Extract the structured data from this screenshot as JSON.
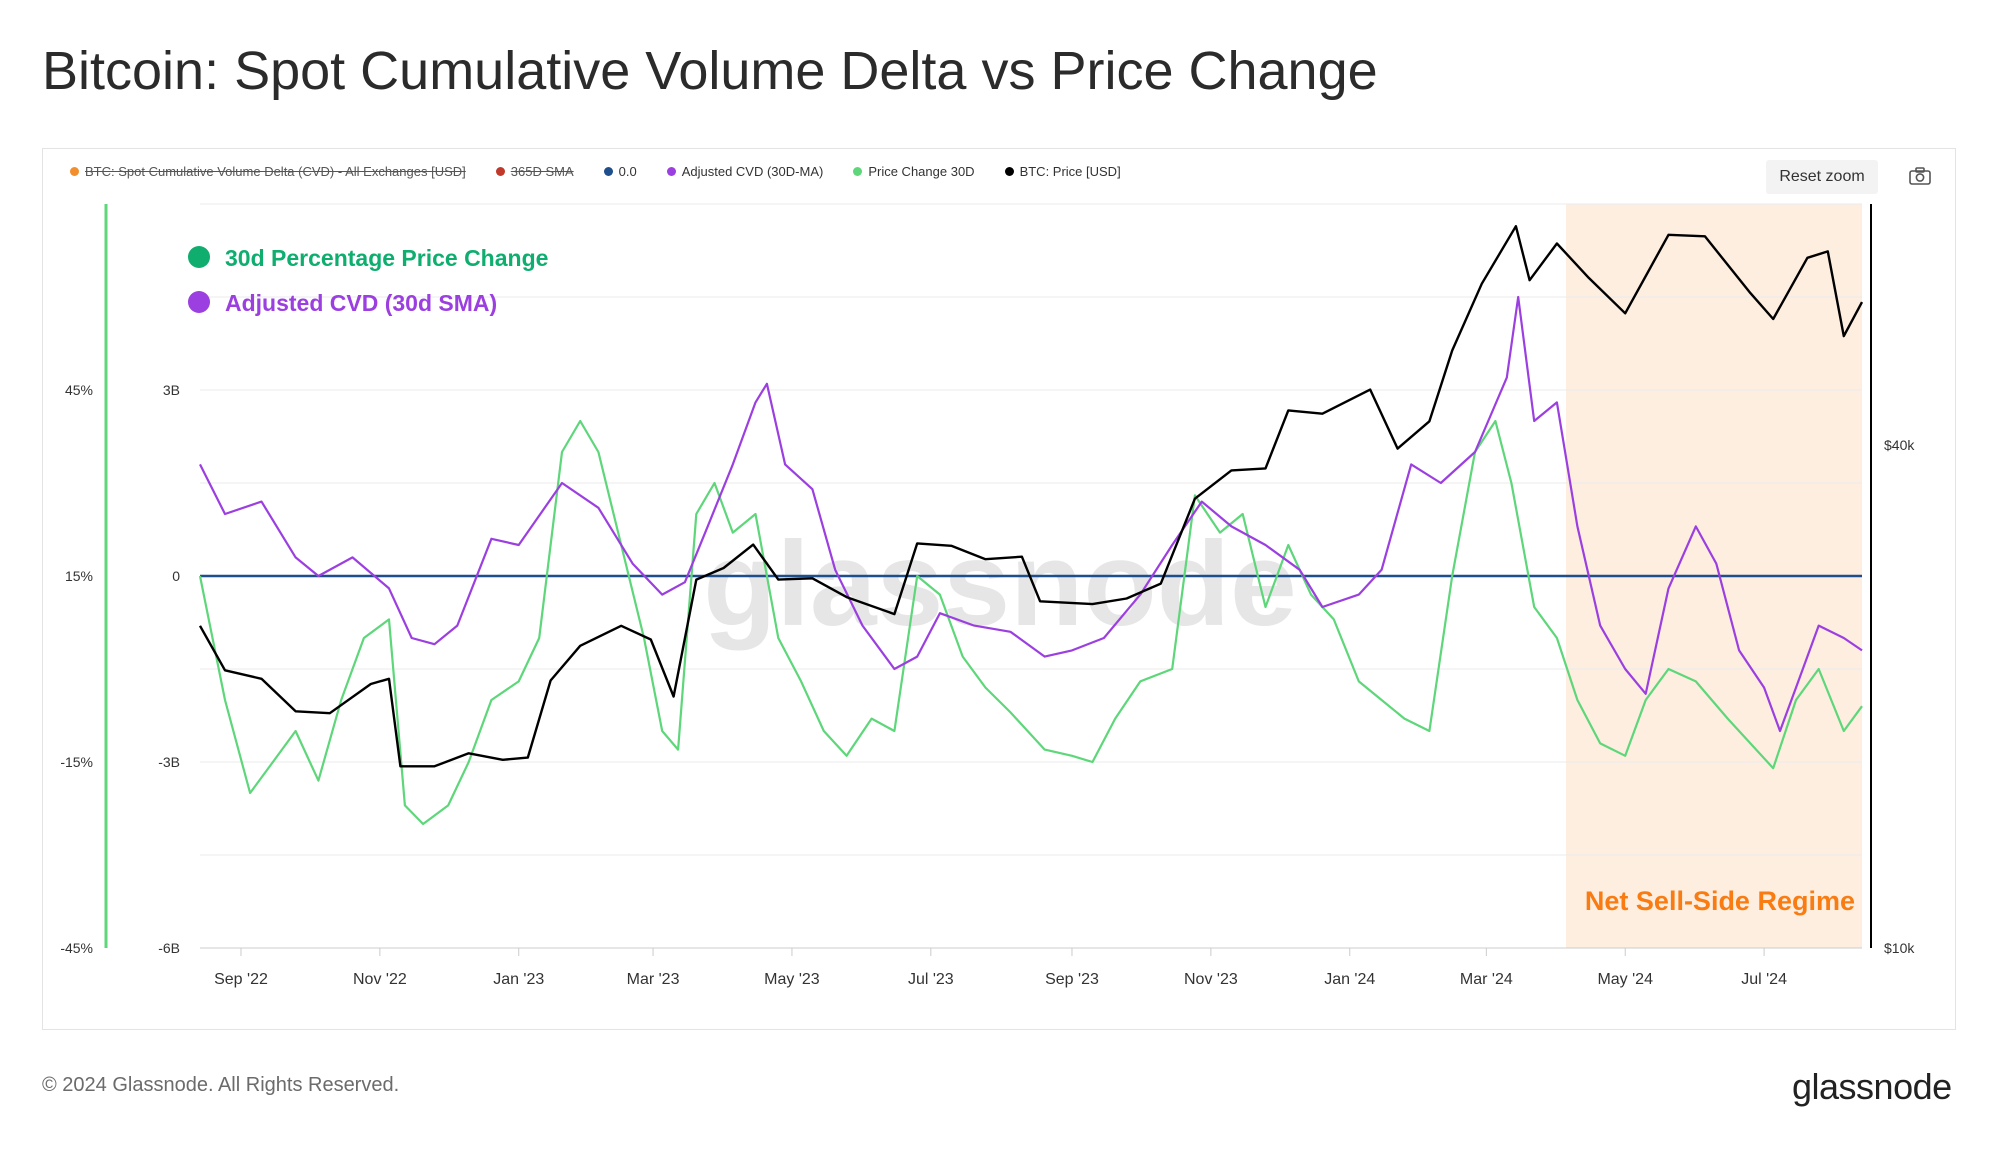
{
  "title": "Bitcoin: Spot Cumulative Volume Delta vs Price Change",
  "legend": [
    {
      "label": "BTC: Spot Cumulative Volume Delta (CVD) - All Exchanges [USD]",
      "color": "#f28e2b",
      "hidden": true
    },
    {
      "label": "365D SMA",
      "color": "#c0392b",
      "hidden": true
    },
    {
      "label": "0.0",
      "color": "#1f4e8c",
      "hidden": false
    },
    {
      "label": "Adjusted CVD (30D-MA)",
      "color": "#9b3fe0",
      "hidden": false
    },
    {
      "label": "Price Change 30D",
      "color": "#5ed67a",
      "hidden": false
    },
    {
      "label": "BTC: Price [USD]",
      "color": "#000000",
      "hidden": false
    }
  ],
  "reset_zoom_label": "Reset zoom",
  "icons": {
    "camera": "camera-icon"
  },
  "footer": {
    "copyright": "© 2024 Glassnode. All Rights Reserved.",
    "brand": "glassnode"
  },
  "watermark": "glassnode",
  "chart_data": {
    "type": "line",
    "annotations": {
      "series_labels": [
        {
          "text": "30d Percentage Price Change",
          "color": "#0fae6f"
        },
        {
          "text": "Adjusted CVD (30d SMA)",
          "color": "#9b3fe0"
        }
      ],
      "region": {
        "text": "Net Sell-Side Regime",
        "color": "#f97c12",
        "fill": "#fdeee0",
        "x_start": "2024-04-05",
        "x_end": "2024-08-13"
      }
    },
    "x_ticks": [
      {
        "label": "Sep '22",
        "date": "2022-09-01"
      },
      {
        "label": "Nov '22",
        "date": "2022-11-01"
      },
      {
        "label": "Jan '23",
        "date": "2023-01-01"
      },
      {
        "label": "Mar '23",
        "date": "2023-03-01"
      },
      {
        "label": "May '23",
        "date": "2023-05-01"
      },
      {
        "label": "Jul '23",
        "date": "2023-07-01"
      },
      {
        "label": "Sep '23",
        "date": "2023-09-01"
      },
      {
        "label": "Nov '23",
        "date": "2023-11-01"
      },
      {
        "label": "Jan '24",
        "date": "2024-01-01"
      },
      {
        "label": "Mar '24",
        "date": "2024-03-01"
      },
      {
        "label": "May '24",
        "date": "2024-05-01"
      },
      {
        "label": "Jul '24",
        "date": "2024-07-01"
      }
    ],
    "x_range": [
      "2022-08-14",
      "2024-08-13"
    ],
    "y_axes": {
      "price_change": {
        "ticks": [
          "45%",
          "15%",
          "-15%",
          "-45%"
        ],
        "tick_values": [
          45,
          15,
          -15,
          -45
        ],
        "range": [
          -45,
          75
        ],
        "color": "#5ed67a"
      },
      "cvd": {
        "ticks": [
          "3B",
          "0",
          "-3B",
          "-6B"
        ],
        "tick_values": [
          3,
          0,
          -3,
          -6
        ],
        "range": [
          -6,
          6
        ],
        "unit": "B USD"
      },
      "price": {
        "ticks": [
          "$40k",
          "$10k"
        ],
        "tick_values": [
          40000,
          10000
        ],
        "scale": "log"
      }
    },
    "grid": true,
    "series": [
      {
        "name": "Price Change 30D",
        "color": "#5ed67a",
        "axis": "price_change",
        "points": [
          [
            "2022-08-14",
            15
          ],
          [
            "2022-08-25",
            -5
          ],
          [
            "2022-09-05",
            -20
          ],
          [
            "2022-09-15",
            -15
          ],
          [
            "2022-09-25",
            -10
          ],
          [
            "2022-10-05",
            -18
          ],
          [
            "2022-10-15",
            -5
          ],
          [
            "2022-10-25",
            5
          ],
          [
            "2022-11-05",
            8
          ],
          [
            "2022-11-12",
            -22
          ],
          [
            "2022-11-20",
            -25
          ],
          [
            "2022-12-01",
            -22
          ],
          [
            "2022-12-10",
            -15
          ],
          [
            "2022-12-20",
            -5
          ],
          [
            "2023-01-01",
            -2
          ],
          [
            "2023-01-10",
            5
          ],
          [
            "2023-01-20",
            35
          ],
          [
            "2023-01-28",
            40
          ],
          [
            "2023-02-05",
            35
          ],
          [
            "2023-02-15",
            20
          ],
          [
            "2023-02-25",
            5
          ],
          [
            "2023-03-05",
            -10
          ],
          [
            "2023-03-12",
            -13
          ],
          [
            "2023-03-20",
            25
          ],
          [
            "2023-03-28",
            30
          ],
          [
            "2023-04-05",
            22
          ],
          [
            "2023-04-15",
            25
          ],
          [
            "2023-04-25",
            5
          ],
          [
            "2023-05-05",
            -2
          ],
          [
            "2023-05-15",
            -10
          ],
          [
            "2023-05-25",
            -14
          ],
          [
            "2023-06-05",
            -8
          ],
          [
            "2023-06-15",
            -10
          ],
          [
            "2023-06-25",
            15
          ],
          [
            "2023-07-05",
            12
          ],
          [
            "2023-07-15",
            2
          ],
          [
            "2023-07-25",
            -3
          ],
          [
            "2023-08-05",
            -7
          ],
          [
            "2023-08-20",
            -13
          ],
          [
            "2023-09-01",
            -14
          ],
          [
            "2023-09-10",
            -15
          ],
          [
            "2023-09-20",
            -8
          ],
          [
            "2023-10-01",
            -2
          ],
          [
            "2023-10-15",
            0
          ],
          [
            "2023-10-25",
            28
          ],
          [
            "2023-11-05",
            22
          ],
          [
            "2023-11-15",
            25
          ],
          [
            "2023-11-25",
            10
          ],
          [
            "2023-12-05",
            20
          ],
          [
            "2023-12-15",
            12
          ],
          [
            "2023-12-25",
            8
          ],
          [
            "2024-01-05",
            -2
          ],
          [
            "2024-01-15",
            -5
          ],
          [
            "2024-01-25",
            -8
          ],
          [
            "2024-02-05",
            -10
          ],
          [
            "2024-02-15",
            15
          ],
          [
            "2024-02-25",
            35
          ],
          [
            "2024-03-05",
            40
          ],
          [
            "2024-03-12",
            30
          ],
          [
            "2024-03-22",
            10
          ],
          [
            "2024-04-01",
            5
          ],
          [
            "2024-04-10",
            -5
          ],
          [
            "2024-04-20",
            -12
          ],
          [
            "2024-05-01",
            -14
          ],
          [
            "2024-05-10",
            -5
          ],
          [
            "2024-05-20",
            0
          ],
          [
            "2024-06-01",
            -2
          ],
          [
            "2024-06-15",
            -8
          ],
          [
            "2024-06-25",
            -12
          ],
          [
            "2024-07-05",
            -16
          ],
          [
            "2024-07-15",
            -5
          ],
          [
            "2024-07-25",
            0
          ],
          [
            "2024-08-05",
            -10
          ],
          [
            "2024-08-13",
            -6
          ]
        ]
      },
      {
        "name": "Adjusted CVD (30D-MA)",
        "color": "#9b3fe0",
        "axis": "cvd",
        "points": [
          [
            "2022-08-14",
            1.8
          ],
          [
            "2022-08-25",
            1.0
          ],
          [
            "2022-09-10",
            1.2
          ],
          [
            "2022-09-25",
            0.3
          ],
          [
            "2022-10-05",
            0
          ],
          [
            "2022-10-20",
            0.3
          ],
          [
            "2022-11-05",
            -0.2
          ],
          [
            "2022-11-15",
            -1.0
          ],
          [
            "2022-11-25",
            -1.1
          ],
          [
            "2022-12-05",
            -0.8
          ],
          [
            "2022-12-20",
            0.6
          ],
          [
            "2023-01-01",
            0.5
          ],
          [
            "2023-01-20",
            1.5
          ],
          [
            "2023-02-05",
            1.1
          ],
          [
            "2023-02-20",
            0.2
          ],
          [
            "2023-03-05",
            -0.3
          ],
          [
            "2023-03-15",
            -0.1
          ],
          [
            "2023-03-25",
            0.8
          ],
          [
            "2023-04-05",
            1.8
          ],
          [
            "2023-04-15",
            2.8
          ],
          [
            "2023-04-20",
            3.1
          ],
          [
            "2023-04-28",
            1.8
          ],
          [
            "2023-05-10",
            1.4
          ],
          [
            "2023-05-20",
            0.1
          ],
          [
            "2023-06-01",
            -0.8
          ],
          [
            "2023-06-15",
            -1.5
          ],
          [
            "2023-06-25",
            -1.3
          ],
          [
            "2023-07-05",
            -0.6
          ],
          [
            "2023-07-20",
            -0.8
          ],
          [
            "2023-08-05",
            -0.9
          ],
          [
            "2023-08-20",
            -1.3
          ],
          [
            "2023-09-01",
            -1.2
          ],
          [
            "2023-09-15",
            -1.0
          ],
          [
            "2023-10-01",
            -0.3
          ],
          [
            "2023-10-15",
            0.5
          ],
          [
            "2023-10-28",
            1.2
          ],
          [
            "2023-11-10",
            0.8
          ],
          [
            "2023-11-25",
            0.5
          ],
          [
            "2023-12-10",
            0.1
          ],
          [
            "2023-12-20",
            -0.5
          ],
          [
            "2024-01-05",
            -0.3
          ],
          [
            "2024-01-15",
            0.1
          ],
          [
            "2024-01-28",
            1.8
          ],
          [
            "2024-02-10",
            1.5
          ],
          [
            "2024-02-25",
            2.0
          ],
          [
            "2024-03-10",
            3.2
          ],
          [
            "2024-03-15",
            4.5
          ],
          [
            "2024-03-22",
            2.5
          ],
          [
            "2024-04-01",
            2.8
          ],
          [
            "2024-04-10",
            0.8
          ],
          [
            "2024-04-20",
            -0.8
          ],
          [
            "2024-05-01",
            -1.5
          ],
          [
            "2024-05-10",
            -1.9
          ],
          [
            "2024-05-20",
            -0.2
          ],
          [
            "2024-06-01",
            0.8
          ],
          [
            "2024-06-10",
            0.2
          ],
          [
            "2024-06-20",
            -1.2
          ],
          [
            "2024-07-01",
            -1.8
          ],
          [
            "2024-07-08",
            -2.5
          ],
          [
            "2024-07-15",
            -1.8
          ],
          [
            "2024-07-25",
            -0.8
          ],
          [
            "2024-08-05",
            -1.0
          ],
          [
            "2024-08-13",
            -1.2
          ]
        ]
      },
      {
        "name": "BTC: Price [USD]",
        "color": "#000000",
        "axis": "price",
        "points": [
          [
            "2022-08-14",
            24300
          ],
          [
            "2022-08-25",
            21500
          ],
          [
            "2022-09-10",
            21000
          ],
          [
            "2022-09-25",
            19200
          ],
          [
            "2022-10-10",
            19100
          ],
          [
            "2022-10-28",
            20700
          ],
          [
            "2022-11-05",
            21000
          ],
          [
            "2022-11-10",
            16500
          ],
          [
            "2022-11-25",
            16500
          ],
          [
            "2022-12-10",
            17100
          ],
          [
            "2022-12-25",
            16800
          ],
          [
            "2023-01-05",
            16900
          ],
          [
            "2023-01-15",
            20900
          ],
          [
            "2023-01-28",
            23000
          ],
          [
            "2023-02-15",
            24300
          ],
          [
            "2023-02-28",
            23400
          ],
          [
            "2023-03-10",
            20000
          ],
          [
            "2023-03-20",
            27600
          ],
          [
            "2023-04-01",
            28500
          ],
          [
            "2023-04-14",
            30400
          ],
          [
            "2023-04-25",
            27600
          ],
          [
            "2023-05-10",
            27700
          ],
          [
            "2023-05-25",
            26300
          ],
          [
            "2023-06-15",
            25100
          ],
          [
            "2023-06-25",
            30500
          ],
          [
            "2023-07-10",
            30300
          ],
          [
            "2023-07-25",
            29200
          ],
          [
            "2023-08-10",
            29400
          ],
          [
            "2023-08-18",
            26000
          ],
          [
            "2023-09-10",
            25800
          ],
          [
            "2023-09-25",
            26200
          ],
          [
            "2023-10-10",
            27300
          ],
          [
            "2023-10-25",
            34500
          ],
          [
            "2023-11-10",
            37300
          ],
          [
            "2023-11-25",
            37500
          ],
          [
            "2023-12-05",
            44000
          ],
          [
            "2023-12-20",
            43600
          ],
          [
            "2024-01-10",
            46600
          ],
          [
            "2024-01-22",
            39600
          ],
          [
            "2024-02-05",
            42700
          ],
          [
            "2024-02-15",
            51900
          ],
          [
            "2024-02-28",
            62400
          ],
          [
            "2024-03-14",
            73100
          ],
          [
            "2024-03-20",
            63000
          ],
          [
            "2024-04-01",
            69700
          ],
          [
            "2024-04-15",
            63400
          ],
          [
            "2024-05-01",
            57500
          ],
          [
            "2024-05-20",
            71400
          ],
          [
            "2024-06-05",
            71100
          ],
          [
            "2024-06-25",
            60800
          ],
          [
            "2024-07-05",
            56600
          ],
          [
            "2024-07-20",
            67000
          ],
          [
            "2024-07-29",
            68200
          ],
          [
            "2024-08-05",
            54000
          ],
          [
            "2024-08-13",
            59300
          ]
        ]
      }
    ],
    "reference_lines": [
      {
        "name": "0.0",
        "value": 0,
        "axis": "cvd",
        "color": "#1f4e8c"
      }
    ]
  }
}
